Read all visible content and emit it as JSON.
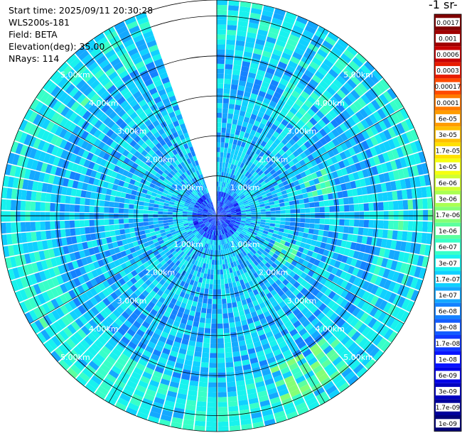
{
  "info": {
    "start_time": "Start time: 2025/09/11 20:30:28",
    "instrument": "WLS200s-181",
    "field": "Field: BETA",
    "elevation": "Elevation(deg): 35.00",
    "nrays": "NRays: 114"
  },
  "colorbar": {
    "unit_label": "-1 sr-",
    "ticks": [
      "0.0017",
      "0.001",
      "0.0006",
      "0.0003",
      "0.00017",
      "0.0001",
      "6e-05",
      "3e-05",
      "1.7e-05",
      "1e-05",
      "6e-06",
      "3e-06",
      "1.7e-06",
      "1e-06",
      "6e-07",
      "3e-07",
      "1.7e-07",
      "1e-07",
      "6e-08",
      "3e-08",
      "1.7e-08",
      "1e-08",
      "6e-09",
      "3e-09",
      "1.7e-09",
      "1e-09"
    ],
    "colors": [
      "#800000",
      "#a00000",
      "#c80000",
      "#e81c00",
      "#ff4a00",
      "#ff7a00",
      "#ff9c00",
      "#ffbf00",
      "#ffe000",
      "#f5ff10",
      "#d2ff30",
      "#aaff52",
      "#84ff76",
      "#5cff9e",
      "#38ffc8",
      "#18f2ee",
      "#10d0ff",
      "#14a8ff",
      "#1482ff",
      "#145cff",
      "#1038ff",
      "#0814ff",
      "#0000e6",
      "#0000c0",
      "#00009a",
      "#000078"
    ]
  },
  "chart_data": {
    "type": "heatmap",
    "projection": "polar (PPI scan)",
    "field": "BETA",
    "elevation_deg": 35.0,
    "nrays": 114,
    "gap_azimuth_deg": [
      340,
      360
    ],
    "range_ring_labels": [
      "1.00km",
      "2.00km",
      "3.00km",
      "4.00km",
      "5.00km"
    ],
    "range_rings_km": [
      1,
      2,
      3,
      4,
      5
    ],
    "max_range_km": 5.4,
    "color_scale": "log",
    "value_range": [
      1e-09,
      0.0017
    ],
    "dominant_value_range": [
      6e-08,
      1e-06
    ],
    "enhanced_regions": [
      {
        "azimuth_deg": [
          140,
          160
        ],
        "range_km": [
          4.0,
          5.0
        ],
        "value": 1.7e-06
      },
      {
        "azimuth_deg": [
          65,
          80
        ],
        "range_km": [
          2.3,
          2.9
        ],
        "value": 1e-06
      },
      {
        "azimuth_deg": [
          110,
          125
        ],
        "range_km": [
          1.6,
          2.2
        ],
        "value": 1e-06
      },
      {
        "azimuth_deg": [
          30,
          50
        ],
        "range_km": [
          3.0,
          4.0
        ],
        "value": 6e-07
      },
      {
        "azimuth_deg": [
          170,
          190
        ],
        "range_km": [
          4.5,
          5.4
        ],
        "value": 6e-07
      },
      {
        "azimuth_deg": [
          200,
          260
        ],
        "range_km": [
          4.2,
          5.4
        ],
        "value": 6e-07
      }
    ],
    "near_range_value": 1.7e-08
  }
}
